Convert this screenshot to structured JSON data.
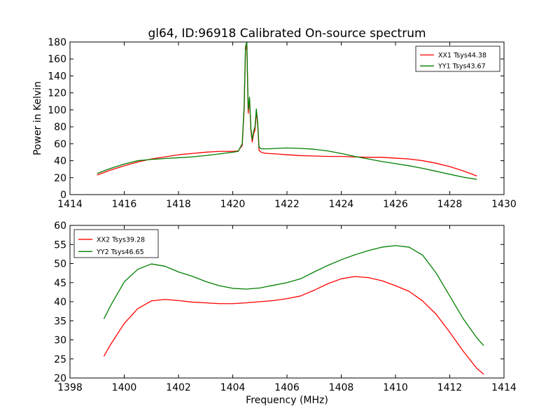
{
  "figure_title": "gl64, ID:96918 Calibrated On-source spectrum",
  "colors": {
    "red": "#ff0000",
    "green": "#007f00",
    "axis": "#000000",
    "background": "#ffffff"
  },
  "chart_data": [
    {
      "type": "line",
      "title": "gl64, ID:96918 Calibrated On-source spectrum",
      "xlabel": "",
      "ylabel": "Power in Kelvin",
      "xlim": [
        1414,
        1430
      ],
      "ylim": [
        0,
        180
      ],
      "xticks": [
        1414,
        1416,
        1418,
        1420,
        1422,
        1424,
        1426,
        1428,
        1430
      ],
      "yticks": [
        0,
        20,
        40,
        60,
        80,
        100,
        120,
        140,
        160,
        180
      ],
      "grid": false,
      "legend_position": "top-right",
      "series": [
        {
          "name": "XX1 Tsys44.38",
          "color": "#ff0000",
          "x": [
            1415.0,
            1415.5,
            1416.0,
            1416.5,
            1417.0,
            1417.5,
            1418.0,
            1418.5,
            1419.0,
            1419.5,
            1420.0,
            1420.2,
            1420.35,
            1420.42,
            1420.47,
            1420.52,
            1420.57,
            1420.62,
            1420.67,
            1420.72,
            1420.77,
            1420.82,
            1420.87,
            1420.92,
            1420.97,
            1421.05,
            1421.15,
            1421.3,
            1421.6,
            1422.0,
            1422.5,
            1423.0,
            1423.5,
            1424.0,
            1424.5,
            1425.0,
            1425.5,
            1426.0,
            1426.5,
            1427.0,
            1427.5,
            1428.0,
            1428.5,
            1429.0
          ],
          "y": [
            23,
            29,
            34,
            38.5,
            42,
            44.5,
            47,
            48.5,
            50,
            51,
            51,
            51.5,
            58,
            100,
            170,
            176,
            96,
            112,
            75,
            62,
            72,
            76,
            98,
            82,
            52,
            50,
            49,
            48.5,
            48,
            47,
            46,
            45.5,
            45,
            45,
            44.5,
            44,
            44,
            43,
            42,
            40,
            37,
            33,
            28,
            22
          ]
        },
        {
          "name": "YY1 Tsys43.67",
          "color": "#007f00",
          "x": [
            1415.0,
            1415.5,
            1416.0,
            1416.5,
            1417.0,
            1417.5,
            1418.0,
            1418.5,
            1419.0,
            1419.5,
            1420.0,
            1420.2,
            1420.35,
            1420.42,
            1420.47,
            1420.52,
            1420.57,
            1420.62,
            1420.67,
            1420.72,
            1420.77,
            1420.82,
            1420.87,
            1420.92,
            1420.97,
            1421.05,
            1421.15,
            1421.3,
            1421.6,
            1422.0,
            1422.5,
            1423.0,
            1423.5,
            1424.0,
            1424.5,
            1425.0,
            1425.5,
            1426.0,
            1426.5,
            1427.0,
            1427.5,
            1428.0,
            1428.5,
            1429.0
          ],
          "y": [
            25,
            31,
            36,
            40,
            41.5,
            42.5,
            43.5,
            44.5,
            46,
            48,
            50,
            51,
            60,
            105,
            175,
            180,
            100,
            115,
            78,
            65,
            75,
            80,
            101,
            85,
            56,
            54,
            54,
            54,
            54.5,
            55,
            54.5,
            53.5,
            51.5,
            48.5,
            45,
            42,
            39,
            36.5,
            34,
            31,
            27.5,
            24,
            20.5,
            18
          ]
        }
      ]
    },
    {
      "type": "line",
      "title": "",
      "xlabel": "Frequency (MHz)",
      "ylabel": "",
      "xlim": [
        1398,
        1414
      ],
      "ylim": [
        20,
        60
      ],
      "xticks": [
        1398,
        1400,
        1402,
        1404,
        1406,
        1408,
        1410,
        1412,
        1414
      ],
      "yticks": [
        20,
        25,
        30,
        35,
        40,
        45,
        50,
        55,
        60
      ],
      "grid": false,
      "legend_position": "top-left",
      "series": [
        {
          "name": "XX2 Tsys39.28",
          "color": "#ff0000",
          "x": [
            1399.25,
            1399.5,
            1400.0,
            1400.5,
            1401.0,
            1401.5,
            1402.0,
            1402.5,
            1403.0,
            1403.5,
            1404.0,
            1404.5,
            1405.0,
            1405.5,
            1406.0,
            1406.5,
            1407.0,
            1407.5,
            1408.0,
            1408.5,
            1409.0,
            1409.5,
            1410.0,
            1410.5,
            1411.0,
            1411.5,
            1412.0,
            1412.5,
            1413.0,
            1413.25
          ],
          "y": [
            25.7,
            28.8,
            34.3,
            38.2,
            40.2,
            40.6,
            40.3,
            39.9,
            39.7,
            39.5,
            39.5,
            39.7,
            40.0,
            40.3,
            40.8,
            41.5,
            43.0,
            44.7,
            46.0,
            46.6,
            46.3,
            45.5,
            44.2,
            42.7,
            40.2,
            36.7,
            32.0,
            27.0,
            22.5,
            21.0
          ]
        },
        {
          "name": "YY2 Tsys46.65",
          "color": "#007f00",
          "x": [
            1399.25,
            1399.5,
            1400.0,
            1400.5,
            1401.0,
            1401.5,
            1402.0,
            1402.5,
            1403.0,
            1403.5,
            1404.0,
            1404.5,
            1405.0,
            1405.5,
            1406.0,
            1406.5,
            1407.0,
            1407.5,
            1408.0,
            1408.5,
            1409.0,
            1409.5,
            1410.0,
            1410.5,
            1411.0,
            1411.5,
            1412.0,
            1412.5,
            1413.0,
            1413.25
          ],
          "y": [
            35.5,
            39.0,
            45.2,
            48.5,
            49.9,
            49.3,
            47.8,
            46.7,
            45.3,
            44.2,
            43.5,
            43.3,
            43.6,
            44.3,
            45.0,
            46.0,
            47.8,
            49.5,
            51.0,
            52.3,
            53.4,
            54.3,
            54.7,
            54.3,
            52.2,
            47.5,
            41.5,
            35.5,
            30.5,
            28.5
          ]
        }
      ]
    }
  ]
}
